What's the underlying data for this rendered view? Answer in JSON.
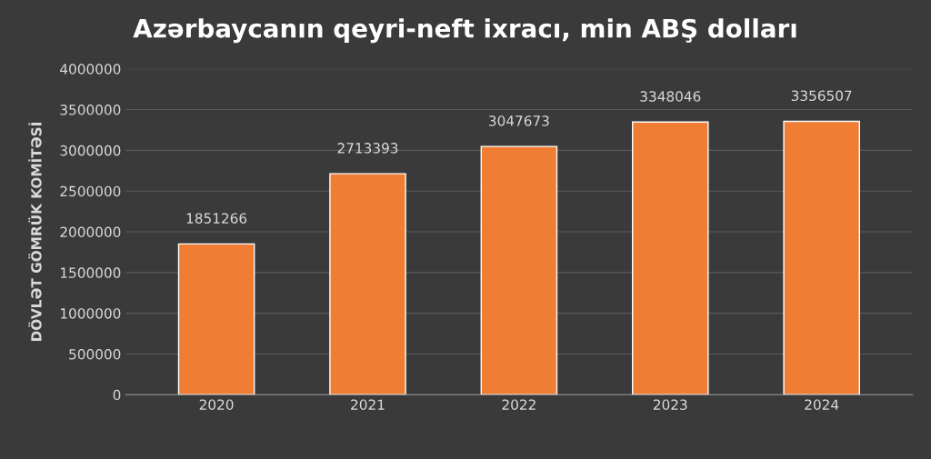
{
  "chart_data": {
    "type": "bar",
    "title": "Azərbaycanın qeyri-neft ixracı, min ABŞ dolları",
    "ylabel": "DÖVLƏT GÖMRÜK KOMİTƏSİ",
    "categories": [
      "2020",
      "2021",
      "2022",
      "2023",
      "2024"
    ],
    "values": [
      1851266,
      2713393,
      3047673,
      3348046,
      3356507
    ],
    "color": "#ef7d34",
    "ylim": [
      0,
      4000000
    ],
    "yticks": [
      0,
      500000,
      1000000,
      1500000,
      2000000,
      2500000,
      3000000,
      3500000,
      4000000
    ],
    "grid": "y",
    "data_labels": true
  }
}
